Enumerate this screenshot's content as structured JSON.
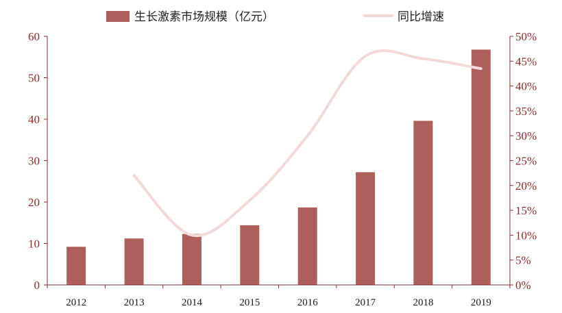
{
  "chart_data": {
    "type": "bar",
    "categories": [
      "2012",
      "2013",
      "2014",
      "2015",
      "2016",
      "2017",
      "2018",
      "2019"
    ],
    "series": [
      {
        "name": "生长激素市场规模（亿元）",
        "type": "bar",
        "axis": "left",
        "color": "#ae5f5b",
        "values": [
          9.2,
          11.2,
          12.3,
          14.4,
          18.7,
          27.2,
          39.6,
          56.8
        ]
      },
      {
        "name": "同比增速",
        "type": "line",
        "axis": "right",
        "color": "#f2dada",
        "values": [
          null,
          0.22,
          0.1,
          0.17,
          0.3,
          0.46,
          0.455,
          0.435
        ]
      }
    ],
    "y_left": {
      "min": 0,
      "max": 60,
      "ticks": [
        0,
        10,
        20,
        30,
        40,
        50,
        60
      ],
      "tick_labels": [
        "0",
        "10",
        "20",
        "30",
        "40",
        "50",
        "60"
      ]
    },
    "y_right": {
      "min": 0,
      "max": 0.5,
      "ticks": [
        0,
        0.05,
        0.1,
        0.15,
        0.2,
        0.25,
        0.3,
        0.35,
        0.4,
        0.45,
        0.5
      ],
      "tick_labels": [
        "0%",
        "5%",
        "10%",
        "15%",
        "20%",
        "25%",
        "30%",
        "35%",
        "40%",
        "45%",
        "50%"
      ]
    },
    "legend_position": "top",
    "grid": false,
    "axis_color": "#8b2b2b"
  }
}
